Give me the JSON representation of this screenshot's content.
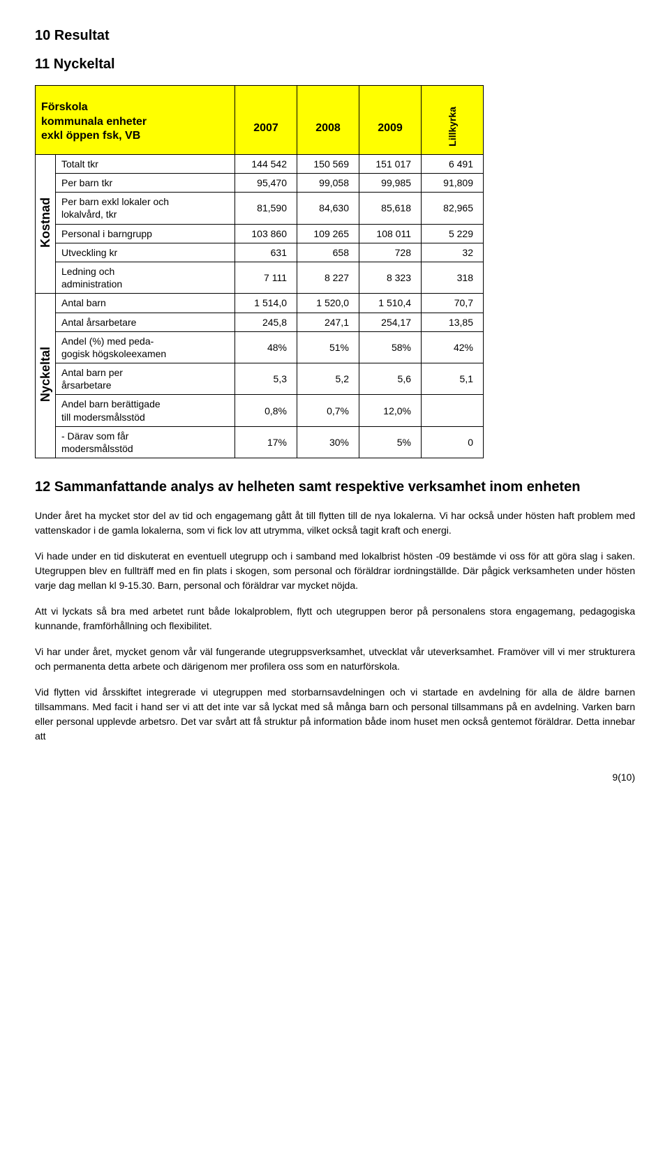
{
  "headings": {
    "h10": "10 Resultat",
    "h11": "11 Nyckeltal",
    "h12": "12 Sammanfattande analys av helheten samt respektive verksamhet inom enheten"
  },
  "table": {
    "header_title": "Förskola\nkommunala enheter\nexkl öppen fsk, VB",
    "years": [
      "2007",
      "2008",
      "2009"
    ],
    "extra_col": "Lillkyrka",
    "section1_label": "Kostnad",
    "section2_label": "Nyckeltal",
    "rows_kostnad": [
      {
        "label": "Totalt tkr",
        "v": [
          "144 542",
          "150 569",
          "151 017",
          "6 491"
        ]
      },
      {
        "label": "Per barn tkr",
        "v": [
          "95,470",
          "99,058",
          "99,985",
          "91,809"
        ]
      },
      {
        "label": "Per barn exkl lokaler och\nlokalvård, tkr",
        "v": [
          "81,590",
          "84,630",
          "85,618",
          "82,965"
        ]
      },
      {
        "label": "Personal i barngrupp",
        "v": [
          "103 860",
          "109 265",
          "108 011",
          "5 229"
        ]
      },
      {
        "label": "Utveckling kr",
        "v": [
          "631",
          "658",
          "728",
          "32"
        ]
      },
      {
        "label": "Ledning och\nadministration",
        "v": [
          "7 111",
          "8 227",
          "8 323",
          "318"
        ]
      }
    ],
    "rows_nyckeltal": [
      {
        "label": "Antal barn",
        "v": [
          "1 514,0",
          "1 520,0",
          "1 510,4",
          "70,7"
        ]
      },
      {
        "label": "Antal årsarbetare",
        "v": [
          "245,8",
          "247,1",
          "254,17",
          "13,85"
        ]
      },
      {
        "label": "Andel (%) med peda-\ngogisk högskoleexamen",
        "v": [
          "48%",
          "51%",
          "58%",
          "42%"
        ]
      },
      {
        "label": "Antal barn per\nårsarbetare",
        "v": [
          "5,3",
          "5,2",
          "5,6",
          "5,1"
        ]
      },
      {
        "label": "Andel barn berättigade\ntill modersmålsstöd",
        "v": [
          "0,8%",
          "0,7%",
          "12,0%",
          ""
        ]
      },
      {
        "label": "- Därav som får\nmodersmålsstöd",
        "v": [
          "17%",
          "30%",
          "5%",
          "0"
        ]
      }
    ]
  },
  "paragraphs": [
    "Under året ha mycket stor del av tid och engagemang gått åt till flytten till de nya lokalerna. Vi har också under hösten haft problem med vattenskador i de gamla lokalerna, som vi fick lov att utrymma, vilket också tagit kraft och energi.",
    "Vi hade under en tid diskuterat en eventuell utegrupp och i samband med lokalbrist hösten -09 bestämde vi oss för att göra slag i saken. Utegruppen blev en fullträff med en fin plats i skogen, som personal och föräldrar iordningställde. Där pågick verksamheten under hösten varje dag mellan kl 9-15.30. Barn, personal och föräldrar var mycket nöjda.",
    "Att vi lyckats så bra med arbetet runt både lokalproblem, flytt och utegruppen beror på personalens stora engagemang, pedagogiska kunnande, framförhållning och flexibilitet.",
    "Vi har under året, mycket genom vår väl fungerande utegruppsverksamhet, utvecklat vår uteverksamhet. Framöver vill vi mer strukturera och permanenta detta arbete och därigenom mer profilera oss som en naturförskola.",
    "Vid flytten vid årsskiftet integrerade vi utegruppen med storbarnsavdelningen och vi startade en avdelning för alla de äldre barnen tillsammans. Med facit i hand ser vi att det inte var så lyckat med så många barn och personal tillsammans på en avdelning. Varken barn eller personal upplevde arbetsro. Det var svårt att få struktur på information både inom huset men också gentemot föräldrar. Detta innebar att"
  ],
  "page_number": "9(10)",
  "colors": {
    "header_bg": "#ffff00",
    "border": "#000000"
  }
}
